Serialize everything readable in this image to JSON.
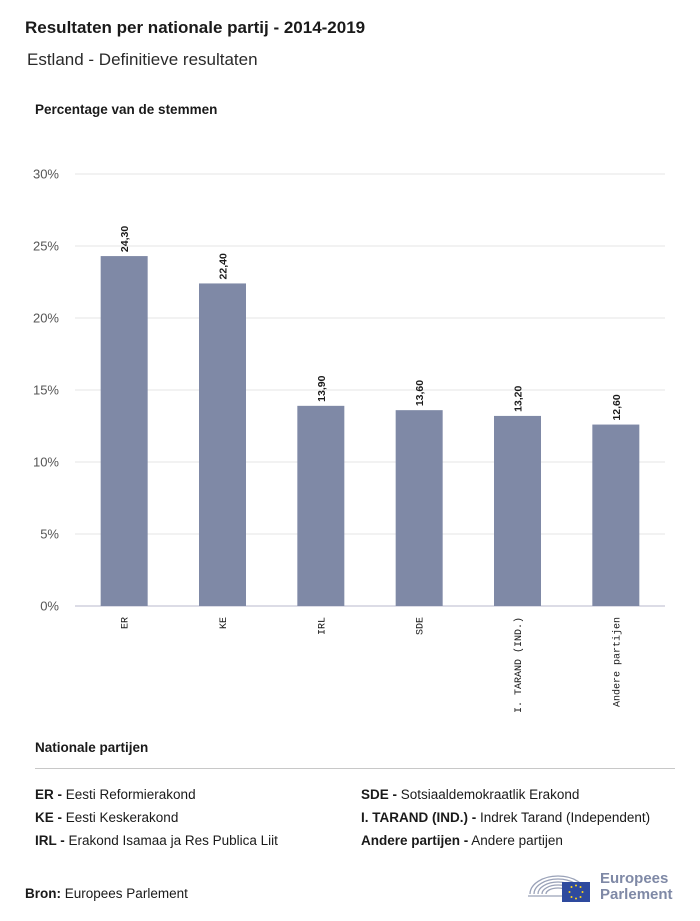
{
  "header": {
    "title": "Resultaten per nationale partij - 2014-2019",
    "subtitle": "Estland - Definitieve resultaten"
  },
  "colors": {
    "bar": "#7f89a6",
    "grid": "#e6e6e6",
    "axis": "#c8c8d8",
    "logo": "#7f89a6",
    "flag": "#2e4a9e"
  },
  "chart_data": {
    "type": "bar",
    "ylabel": "Percentage van de stemmen",
    "categories": [
      "ER",
      "KE",
      "IRL",
      "SDE",
      "I. TARAND (IND.)",
      "Andere partijen"
    ],
    "values": [
      24.3,
      22.4,
      13.9,
      13.6,
      13.2,
      12.6
    ],
    "value_labels": [
      "24,30",
      "22,40",
      "13,90",
      "13,60",
      "13,20",
      "12,60"
    ],
    "yticks": [
      0,
      5,
      10,
      15,
      20,
      25,
      30
    ],
    "ytick_labels": [
      "0%",
      "5%",
      "10%",
      "15%",
      "20%",
      "25%",
      "30%"
    ],
    "ylim": [
      0,
      30
    ],
    "grid": true
  },
  "legend": {
    "title": "Nationale partijen",
    "items": [
      {
        "abbr": "ER -",
        "name": "Eesti Reformierakond"
      },
      {
        "abbr": "KE -",
        "name": "Eesti Keskerakond"
      },
      {
        "abbr": "IRL -",
        "name": "Erakond Isamaa ja Res Publica Liit"
      },
      {
        "abbr": "SDE -",
        "name": "Sotsiaaldemokraatlik Erakond"
      },
      {
        "abbr": "I. TARAND (IND.) -",
        "name": "Indrek Tarand (Independent)"
      },
      {
        "abbr": "Andere partijen -",
        "name": "Andere partijen"
      }
    ]
  },
  "source": {
    "label": "Bron:",
    "value": "Europees Parlement"
  },
  "logo": {
    "line1": "Europees",
    "line2": "Parlement"
  }
}
